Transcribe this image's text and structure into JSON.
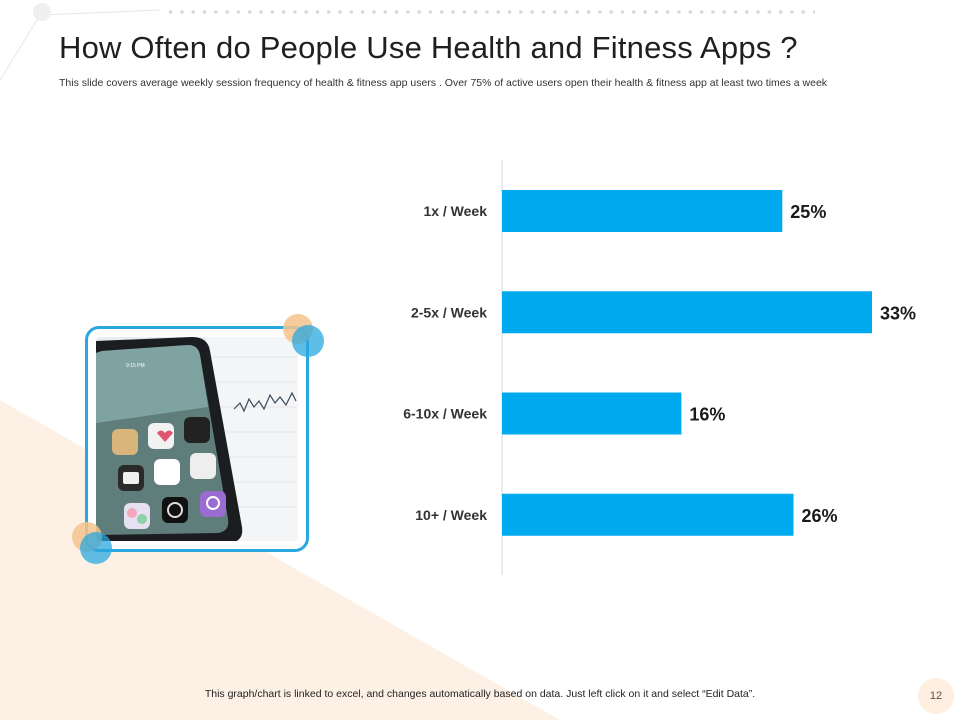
{
  "slide": {
    "title": "How Often do People Use Health and Fitness Apps ?",
    "subtitle": "This slide covers average weekly session frequency of health & fitness app users . Over 75% of active users open their health & fitness app at least two times a week",
    "footer_note": "This graph/chart is linked to excel, and changes automatically based on data. Just left click on it and select “Edit Data”.",
    "page_number": "12"
  },
  "colors": {
    "bar": "#00aaee",
    "accent_blue": "#29a8e0",
    "accent_orange": "#f5c38c",
    "background_peach": "#fdf1e6"
  },
  "photo": {
    "phone_status_time": "9:15 PM"
  },
  "chart_data": {
    "type": "bar",
    "orientation": "horizontal",
    "title": "",
    "xlabel": "",
    "ylabel": "",
    "categories": [
      "1x / Week",
      "2-5x / Week",
      "6-10x / Week",
      "10+ / Week"
    ],
    "values": [
      25,
      33,
      16,
      26
    ],
    "value_labels": [
      "25%",
      "33%",
      "16%",
      "26%"
    ],
    "unit": "%",
    "xlim": [
      0,
      33
    ],
    "grid": false,
    "legend": "none"
  }
}
